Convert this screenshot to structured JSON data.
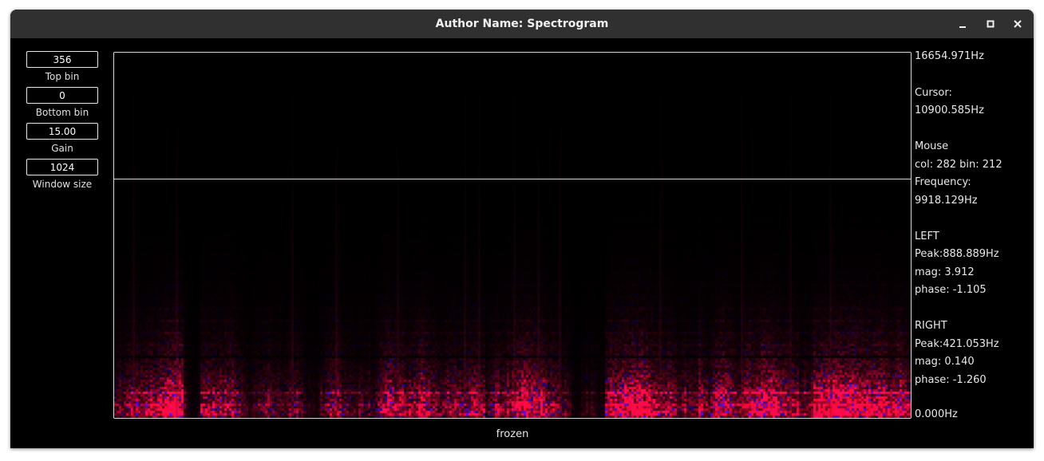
{
  "window": {
    "title": "Author Name: Spectrogram",
    "controls": [
      "minimize-icon",
      "maximize-icon",
      "close-icon"
    ]
  },
  "params": [
    {
      "value": "356",
      "label": "Top bin"
    },
    {
      "value": "0",
      "label": "Bottom bin"
    },
    {
      "value": "15.00",
      "label": "Gain"
    },
    {
      "value": "1024",
      "label": "Window size"
    }
  ],
  "info": {
    "top_freq": "16654.971Hz",
    "cursor_label": "Cursor:",
    "cursor_freq": "10900.585Hz",
    "mouse_label": "Mouse",
    "mouse_pos": "col: 282 bin: 212",
    "frequency_label": "Frequency:",
    "frequency_value": "9918.129Hz",
    "left_label": "LEFT",
    "left_peak": "Peak:888.889Hz",
    "left_mag": "mag: 3.912",
    "left_phase": "phase: -1.105",
    "right_label": "RIGHT",
    "right_peak": "Peak:421.053Hz",
    "right_mag": "mag: 0.140",
    "right_phase": "phase: -1.260",
    "bottom_freq": "0.000Hz"
  },
  "spectrogram": {
    "top_bin": 356,
    "bottom_bin": 0,
    "cursor_bin": 233,
    "left_color": "#ff1040",
    "right_color": "#3010ff"
  },
  "status": "frozen"
}
